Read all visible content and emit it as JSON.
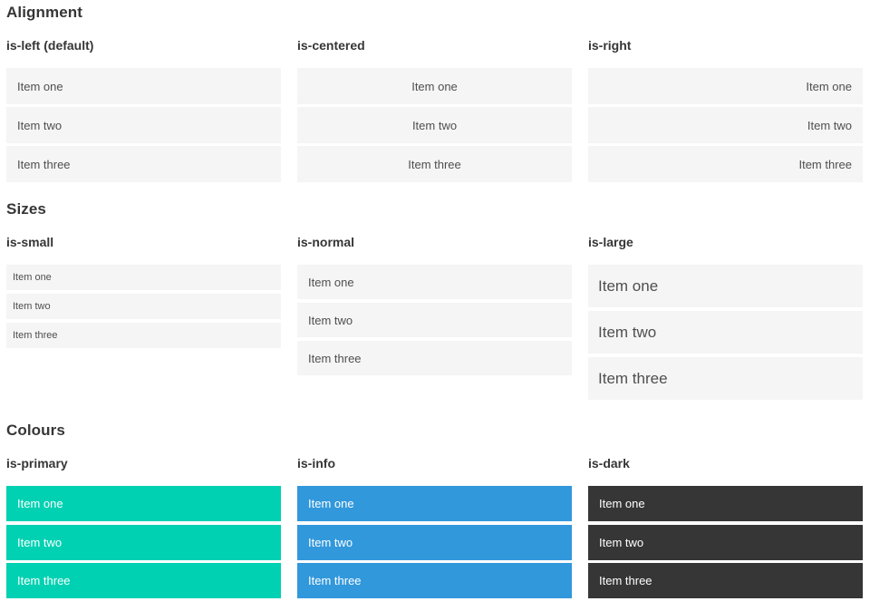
{
  "sections": [
    {
      "title": "Alignment",
      "columns": [
        {
          "heading": "is-left (default)",
          "items": [
            "Item one",
            "Item two",
            "Item three"
          ]
        },
        {
          "heading": "is-centered",
          "items": [
            "Item one",
            "Item two",
            "Item three"
          ]
        },
        {
          "heading": "is-right",
          "items": [
            "Item one",
            "Item two",
            "Item three"
          ]
        }
      ]
    },
    {
      "title": "Sizes",
      "columns": [
        {
          "heading": "is-small",
          "items": [
            "Item one",
            "Item two",
            "Item three"
          ]
        },
        {
          "heading": "is-normal",
          "items": [
            "Item one",
            "Item two",
            "Item three"
          ]
        },
        {
          "heading": "is-large",
          "items": [
            "Item one",
            "Item two",
            "Item three"
          ]
        }
      ]
    },
    {
      "title": "Colours",
      "columns": [
        {
          "heading": "is-primary",
          "items": [
            "Item one",
            "Item two",
            "Item three"
          ]
        },
        {
          "heading": "is-info",
          "items": [
            "Item one",
            "Item two",
            "Item three"
          ]
        },
        {
          "heading": "is-dark",
          "items": [
            "Item one",
            "Item two",
            "Item three"
          ]
        }
      ]
    }
  ],
  "colors": {
    "primary": "#00d1b2",
    "info": "#3298dc",
    "dark": "#363636",
    "item_bg": "#f5f5f5",
    "item_text": "#4f4f4f",
    "heading_text": "#363636",
    "colored_item_text": "#ffffff"
  }
}
